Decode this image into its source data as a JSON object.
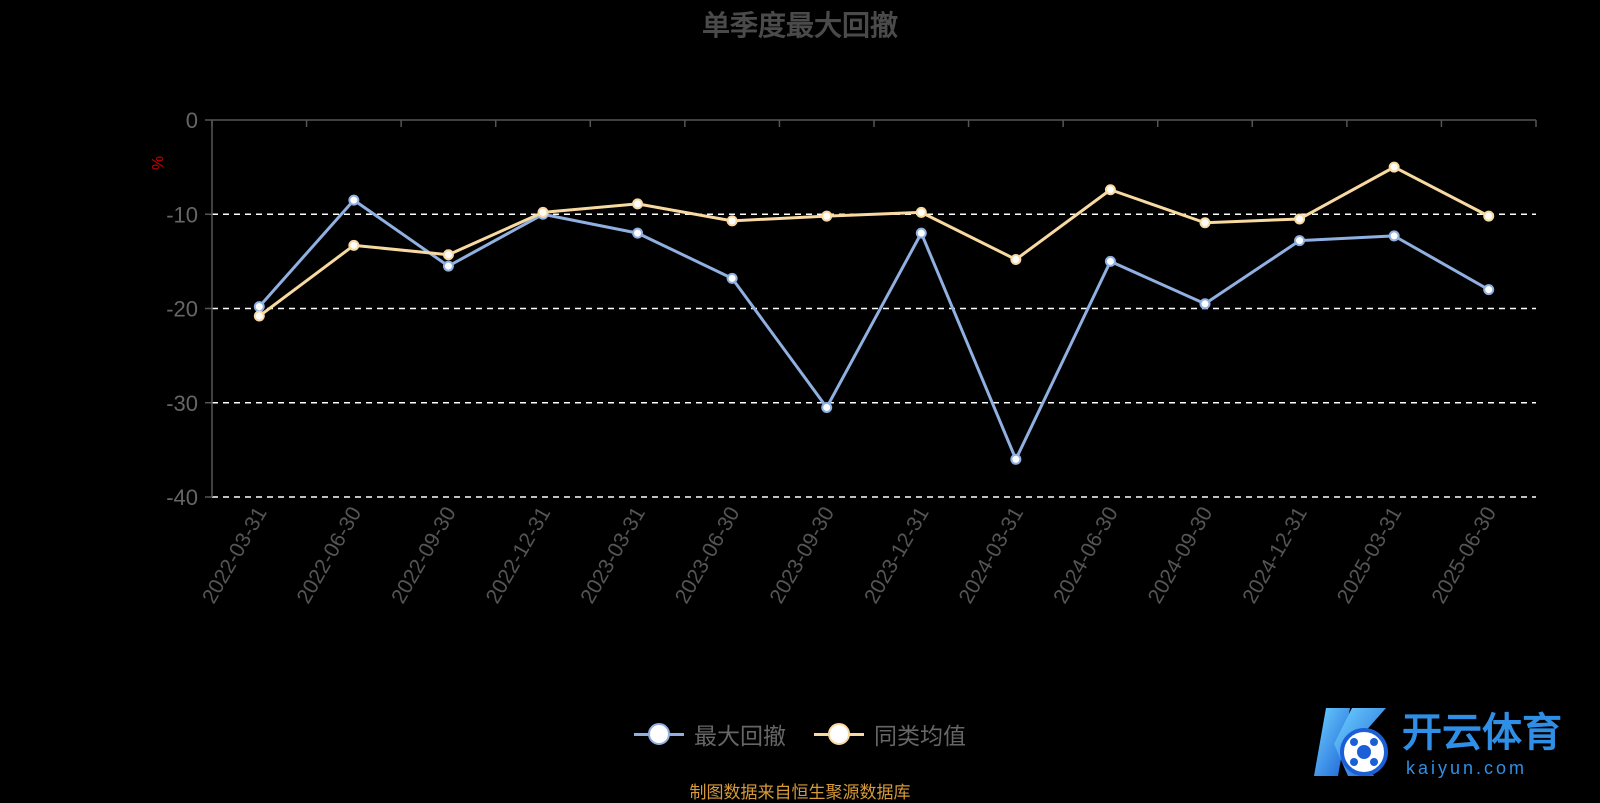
{
  "title": "单季度最大回撤",
  "ylabel": "%",
  "source": "制图数据来自恒生聚源数据库",
  "watermark": {
    "cn": "开云体育",
    "en": "kaiyun.com"
  },
  "colors": {
    "background": "#000000",
    "series1": "#8fb0e0",
    "series2": "#f8d9a0",
    "ylabel": "#cc0000",
    "source": "#d69a3a"
  },
  "chart_data": {
    "type": "line",
    "title": "单季度最大回撤",
    "ylabel": "%",
    "xlabel": "",
    "categories": [
      "2022-03-31",
      "2022-06-30",
      "2022-09-30",
      "2022-12-31",
      "2023-03-31",
      "2023-06-30",
      "2023-09-30",
      "2023-12-31",
      "2024-03-31",
      "2024-06-30",
      "2024-09-30",
      "2024-12-31",
      "2025-03-31",
      "2025-06-30"
    ],
    "ylim": [
      -40,
      0
    ],
    "yticks": [
      0,
      -10,
      -20,
      -30,
      -40
    ],
    "ytick_labels": [
      "0",
      "-10",
      "-20",
      "-30",
      "-40"
    ],
    "grid": true,
    "legend_position": "bottom",
    "series": [
      {
        "name": "最大回撤",
        "color": "#8fb0e0",
        "values": [
          -19.8,
          -8.5,
          -15.5,
          -10.0,
          -12.0,
          -16.8,
          -30.5,
          -12.0,
          -36.0,
          -15.0,
          -19.5,
          -12.8,
          -12.3,
          -18.0
        ]
      },
      {
        "name": "同类均值",
        "color": "#f8d9a0",
        "values": [
          -20.8,
          -13.3,
          -14.3,
          -9.8,
          -8.9,
          -10.7,
          -10.2,
          -9.8,
          -14.8,
          -7.4,
          -10.9,
          -10.5,
          -5.0,
          -10.2
        ]
      }
    ]
  }
}
